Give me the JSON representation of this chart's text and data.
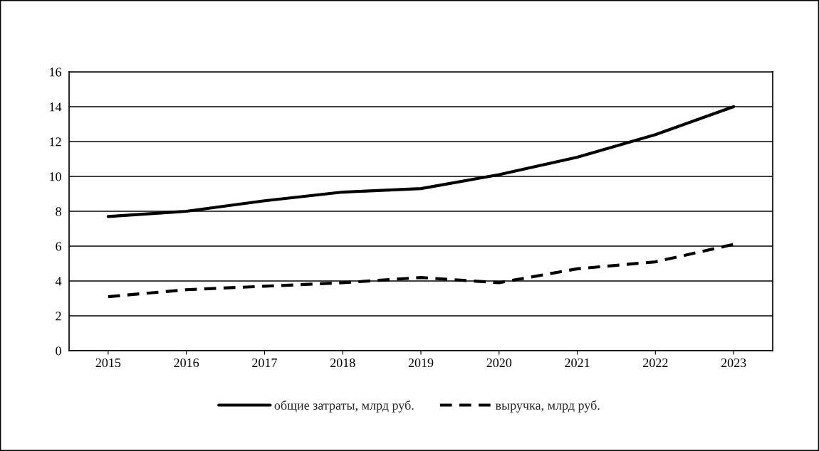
{
  "chart_data": {
    "type": "line",
    "categories": [
      "2015",
      "2016",
      "2017",
      "2018",
      "2019",
      "2020",
      "2021",
      "2022",
      "2023"
    ],
    "series": [
      {
        "name": "общие затраты, млрд руб.",
        "color": "#000000",
        "line_style": "solid",
        "values": [
          7.7,
          8.0,
          8.6,
          9.1,
          9.3,
          10.1,
          11.1,
          12.4,
          14.0
        ]
      },
      {
        "name": "выручка, млрд руб.",
        "color": "#000000",
        "line_style": "dashed",
        "values": [
          3.1,
          3.5,
          3.7,
          3.9,
          4.2,
          3.9,
          4.7,
          5.1,
          6.1
        ]
      }
    ],
    "ylim": [
      0,
      16
    ],
    "yticks": [
      0,
      2,
      4,
      6,
      8,
      10,
      12,
      14,
      16
    ],
    "grid": "y",
    "legend": "bottom",
    "marker": "none"
  }
}
